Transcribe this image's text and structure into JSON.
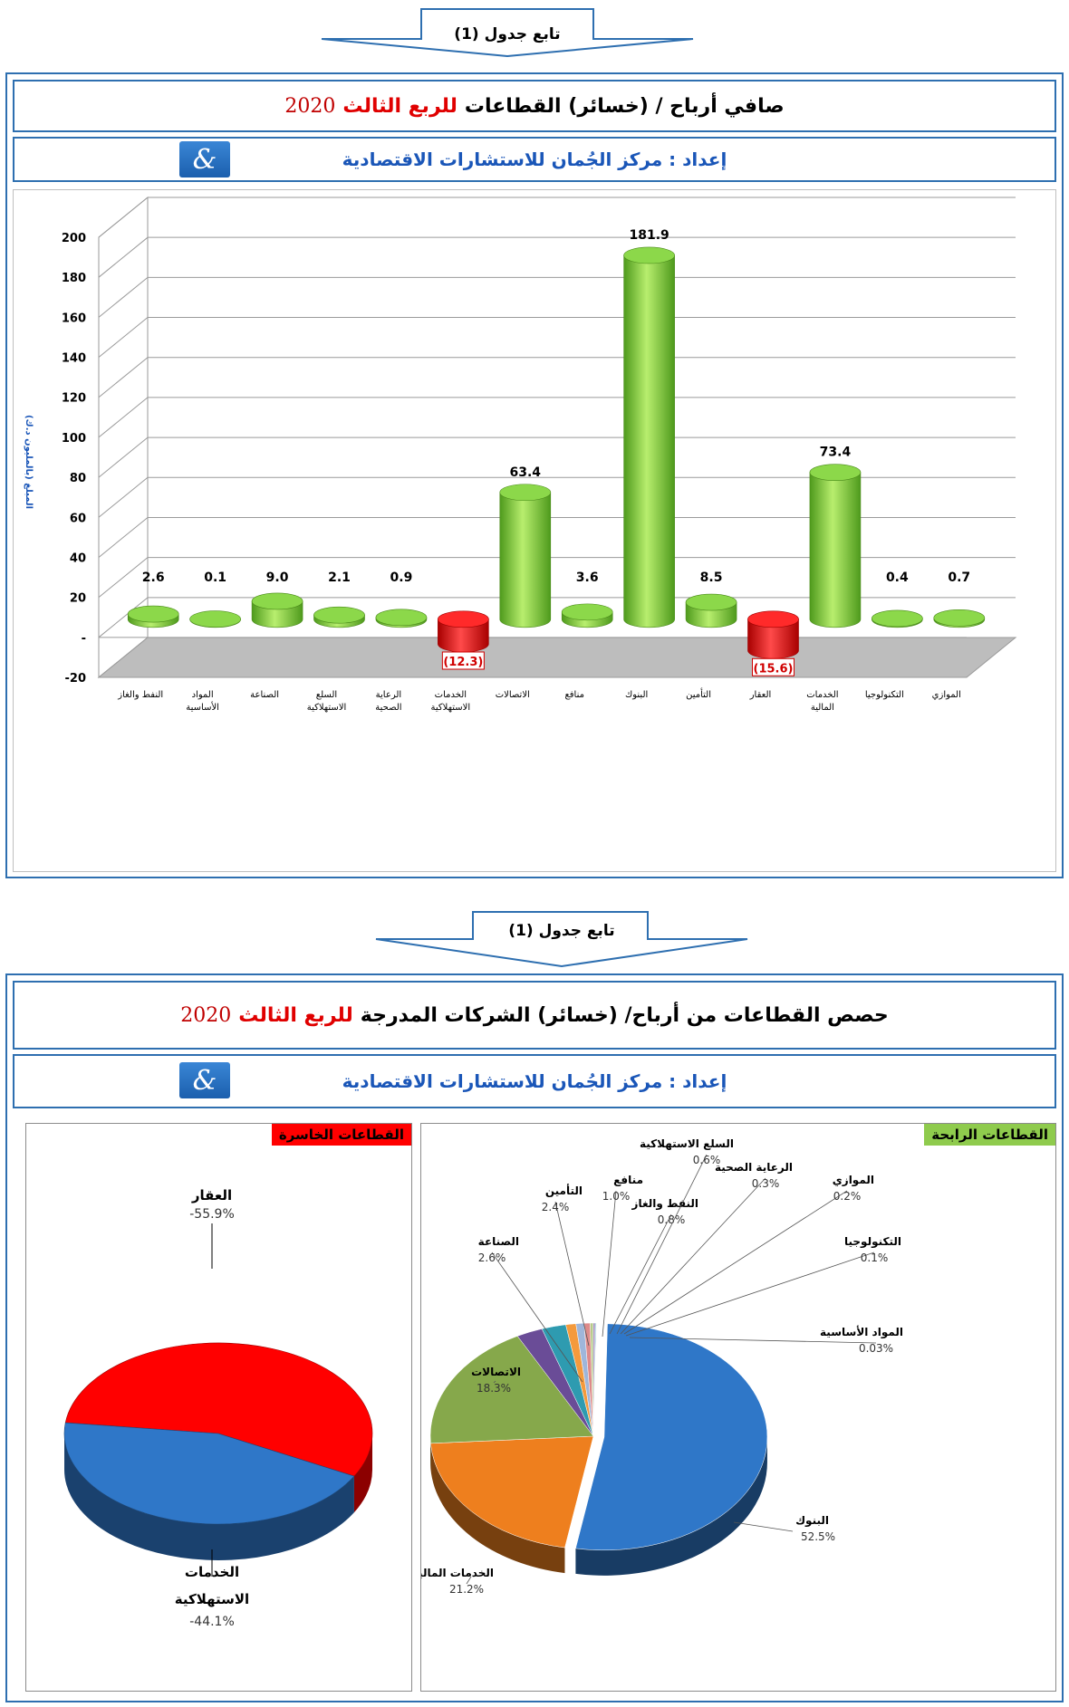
{
  "colors": {
    "frame": "#2e6fb0",
    "accent_red": "#e00000",
    "prep_blue": "#1a56b8",
    "bar_green": "#7ec83a",
    "bar_red": "#ee1c1c"
  },
  "top_arrow": {
    "label": "تابع جدول (1)"
  },
  "bar_section": {
    "title_prefix": "صافي أرباح / (خسائر) القطاعات",
    "title_red": "للربع الثالث",
    "title_year": "2020",
    "prepared_by": "إعداد : مركز الجُمان للاستشارات الاقتصادية",
    "logo_icon": "logo-icon"
  },
  "mid_arrow": {
    "label": "تابع جدول (1)"
  },
  "pie_section": {
    "title_prefix": "حصص القطاعات من أرباح/ (خسائر) الشركات المدرجة",
    "title_red": "للربع الثالث",
    "title_year": "2020",
    "prepared_by": "إعداد : مركز الجُمان للاستشارات الاقتصادية",
    "losing_tag": "القطاعات الخاسرة",
    "profit_tag": "القطاعات الرابحة"
  },
  "chart_data": [
    {
      "type": "bar",
      "ylabel": "المبلغ (بالمليون د.ك)",
      "ylim": [
        -20,
        200
      ],
      "yticks": [
        "-20",
        "-",
        "20",
        "40",
        "60",
        "80",
        "100",
        "120",
        "140",
        "160",
        "180",
        "200"
      ],
      "categories": [
        "النفط والغاز",
        "المواد الأساسية",
        "الصناعة",
        "السلع الاستهلاكية",
        "الرعاية الصحية",
        "الخدمات الاستهلاكية",
        "الاتصالات",
        "منافع",
        "البنوك",
        "التأمين",
        "العقار",
        "الخدمات المالية",
        "التكنولوجيا",
        "الموازي"
      ],
      "category_lines": [
        [
          "النفط والغاز"
        ],
        [
          "المواد",
          "الأساسية"
        ],
        [
          "الصناعة"
        ],
        [
          "السلع",
          "الاستهلاكية"
        ],
        [
          "الرعاية",
          "الصحية"
        ],
        [
          "الخدمات",
          "الاستهلاكية"
        ],
        [
          "الاتصالات"
        ],
        [
          "منافع"
        ],
        [
          "البنوك"
        ],
        [
          "التأمين"
        ],
        [
          "العقار"
        ],
        [
          "الخدمات",
          "المالية"
        ],
        [
          "التكنولوجيا"
        ],
        [
          "الموازي"
        ]
      ],
      "values": [
        2.6,
        0.1,
        9.0,
        2.1,
        0.9,
        -12.3,
        63.4,
        3.6,
        181.9,
        8.5,
        -15.6,
        73.4,
        0.4,
        0.7
      ],
      "value_labels": [
        "2.6",
        "0.1",
        "9.0",
        "2.1",
        "0.9",
        "(12.3)",
        "63.4",
        "3.6",
        "181.9",
        "8.5",
        "(15.6)",
        "73.4",
        "0.4",
        "0.7"
      ]
    },
    {
      "type": "pie",
      "title": "القطاعات الخاسرة",
      "slices": [
        {
          "name": "العقار",
          "label_lines": [
            "العقار"
          ],
          "value": -55.9,
          "pct": "-55.9%",
          "color": "#ff0000"
        },
        {
          "name": "الخدمات الاستهلاكية",
          "label_lines": [
            "الخدمات",
            "الاستهلاكية"
          ],
          "value": -44.1,
          "pct": "-44.1%",
          "color": "#2f77c8"
        }
      ]
    },
    {
      "type": "pie",
      "title": "القطاعات الرابحة",
      "slices": [
        {
          "name": "البنوك",
          "value": 52.5,
          "pct": "52.5%",
          "color": "#2f77c8"
        },
        {
          "name": "الخدمات المالية",
          "value": 21.2,
          "pct": "21.2%",
          "color": "#ee7f1e"
        },
        {
          "name": "الاتصالات",
          "value": 18.3,
          "pct": "18.3%",
          "color": "#86a84b"
        },
        {
          "name": "الصناعة",
          "value": 2.6,
          "pct": "2.6%",
          "color": "#6a4c97"
        },
        {
          "name": "التأمين",
          "value": 2.4,
          "pct": "2.4%",
          "color": "#2e9bb0"
        },
        {
          "name": "منافع",
          "value": 1.0,
          "pct": "1.0%",
          "color": "#f49a3c"
        },
        {
          "name": "النفط والغاز",
          "value": 0.8,
          "pct": "0.8%",
          "color": "#9fb6da"
        },
        {
          "name": "السلع الاستهلاكية",
          "value": 0.6,
          "pct": "0.6%",
          "color": "#de8a8a"
        },
        {
          "name": "الرعاية الصحية",
          "value": 0.3,
          "pct": "0.3%",
          "color": "#b7cc8a"
        },
        {
          "name": "الموازي",
          "value": 0.2,
          "pct": "0.2%",
          "color": "#a08dc0"
        },
        {
          "name": "التكنولوجيا",
          "value": 0.1,
          "pct": "0.1%",
          "color": "#7cc4d4"
        },
        {
          "name": "المواد الأساسية",
          "value": 0.03,
          "pct": "0.03%",
          "color": "#f5b97a"
        }
      ]
    }
  ]
}
